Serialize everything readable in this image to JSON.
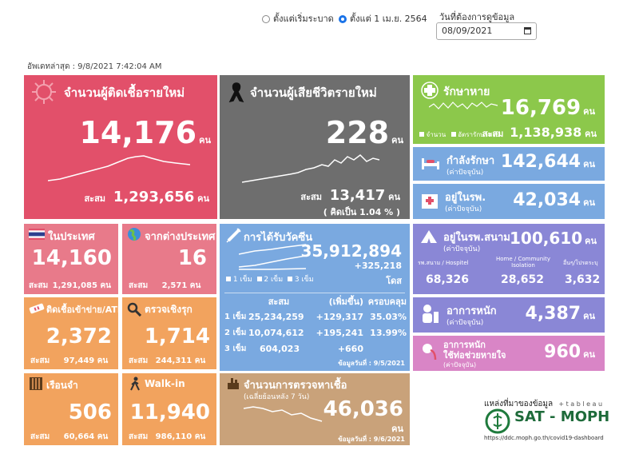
{
  "filter": {
    "opt1": "ตั้งแต่เริ่มระบาด",
    "opt2": "ตั้งแต่ 1 เม.ย. 2564",
    "date_label": "วันที่ต้องการดูข้อมูล",
    "date_value": "08/09/2021"
  },
  "updated": "อัพเดทล่าสุด : 9/8/2021 7:42:04 AM",
  "unit": "คน",
  "cum_label": "สะสม",
  "new_cases": {
    "title": "จำนวนผู้ติดเชื้อรายใหม่",
    "value": "14,176",
    "cum": "1,293,656"
  },
  "deaths": {
    "title": "จำนวนผู้เสียชีวิตรายใหม่",
    "value": "228",
    "cum": "13,417",
    "pct": "( คิดเป็น    1.04 % )"
  },
  "recovered": {
    "title": "รักษาหาย",
    "value": "16,769",
    "legend1": "จำนวน",
    "legend2": "อัตรารักษาหาย",
    "cum": "1,138,938"
  },
  "in_treatment": {
    "title": "กำลังรักษา",
    "sub": "(ค่าปัจจุบัน)",
    "value": "142,644"
  },
  "in_hospital": {
    "title": "อยู่ในรพ.",
    "sub": "(ค่าปัจจุบัน)",
    "value": "42,034"
  },
  "domestic": {
    "title": "ในประเทศ",
    "value": "14,160",
    "cum": "1,291,085"
  },
  "imported": {
    "title": "จากต่างประเทศ",
    "value": "16",
    "cum": "2,571"
  },
  "atk": {
    "title": "ติดเชื้อเข้าข่าย/ATK",
    "value": "2,372",
    "cum": "97,449"
  },
  "proactive": {
    "title": "ตรวจเชิงรุก",
    "value": "1,714",
    "cum": "244,311"
  },
  "prison": {
    "title": "เรือนจำ",
    "value": "506",
    "cum": "60,664"
  },
  "walkin": {
    "title": "Walk-in",
    "value": "11,940",
    "cum": "986,110"
  },
  "vaccine": {
    "title": "การได้รับวัคซีน",
    "total": "35,912,894",
    "delta": "+325,218",
    "dose_unit": "โดส",
    "legend": [
      "1 เข็ม",
      "2 เข็ม",
      "3 เข็ม"
    ],
    "headers": [
      "สะสม",
      "(เพิ่มขึ้น)",
      "ครอบคลุม"
    ],
    "rows": [
      {
        "label": "1 เข็ม",
        "cum": "25,234,259",
        "inc": "+129,317",
        "cov": "35.03%"
      },
      {
        "label": "2 เข็ม",
        "cum": "10,074,612",
        "inc": "+195,241",
        "cov": "13.99%"
      },
      {
        "label": "3 เข็ม",
        "cum": "604,023",
        "inc": "+660",
        "cov": ""
      }
    ],
    "asof": "ข้อมูลวันที่ : 9/5/2021"
  },
  "field_hosp": {
    "title": "อยู่ในรพ.สนาม",
    "sub": "(ค่าปัจจุบัน)",
    "value": "100,610",
    "c1_label": "รพ.สนาม / Hospitel",
    "c1_value": "68,326",
    "c2_label": "Home / Community Isolation",
    "c2_value": "28,652",
    "c3_label": "อื่นๆ/โปรดระบุ",
    "c3_value": "3,632"
  },
  "severe": {
    "title": "อาการหนัก",
    "sub": "(ค่าปัจจุบัน)",
    "value": "4,387"
  },
  "ventilator": {
    "title1": "อาการหนัก",
    "title2": "ใช้ท่อช่วยหายใจ",
    "sub": "(ค่าปัจจุบัน)",
    "value": "960"
  },
  "tests": {
    "title": "จำนวนการตรวจหาเชื้อ",
    "sub": "(เฉลี่ยย้อนหลัง 7 วัน)",
    "value": "46,036",
    "asof": "ข้อมูลวันที่ : 9/6/2021"
  },
  "source": {
    "label": "แหล่งที่มาของข้อมูล",
    "tableau": "+ t a b l e a u",
    "brand": "SAT - MOPH",
    "url": "https://ddc.moph.go.th/covid19-dashboard"
  },
  "colors": {
    "red": "#e2506a",
    "pinkred": "#e87a8a",
    "gray": "#6e6e6e",
    "green": "#8cc84b",
    "blue": "#7aa9e0",
    "purple": "#8a87d6",
    "pink": "#d985c6",
    "orange": "#f2a35e",
    "tan": "#c9a27a"
  }
}
